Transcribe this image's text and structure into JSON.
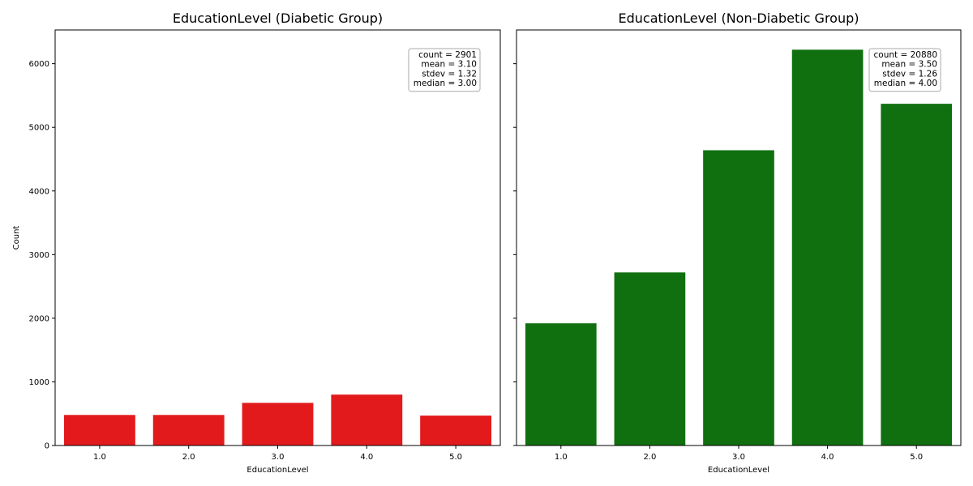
{
  "chart_data": [
    {
      "type": "bar",
      "title": "EducationLevel (Diabetic Group)",
      "xlabel": "EducationLevel",
      "ylabel": "Count",
      "categories": [
        "1.0",
        "2.0",
        "3.0",
        "4.0",
        "5.0"
      ],
      "values": [
        480,
        480,
        670,
        800,
        470
      ],
      "color": "#e31a1c",
      "ylim": [
        0,
        6530
      ],
      "yticks": [
        0,
        1000,
        2000,
        3000,
        4000,
        5000,
        6000
      ],
      "stats": [
        "count = 2901",
        "mean = 3.10",
        "stdev = 1.32",
        "median = 3.00"
      ]
    },
    {
      "type": "bar",
      "title": "EducationLevel (Non-Diabetic Group)",
      "xlabel": "EducationLevel",
      "ylabel": "",
      "categories": [
        "1.0",
        "2.0",
        "3.0",
        "4.0",
        "5.0"
      ],
      "values": [
        1920,
        2720,
        4640,
        6220,
        5370
      ],
      "color": "#107010",
      "ylim": [
        0,
        6530
      ],
      "yticks": [
        0,
        1000,
        2000,
        3000,
        4000,
        5000,
        6000
      ],
      "stats": [
        "count = 20880",
        "mean = 3.50",
        "stdev = 1.26",
        "median = 4.00"
      ]
    }
  ]
}
